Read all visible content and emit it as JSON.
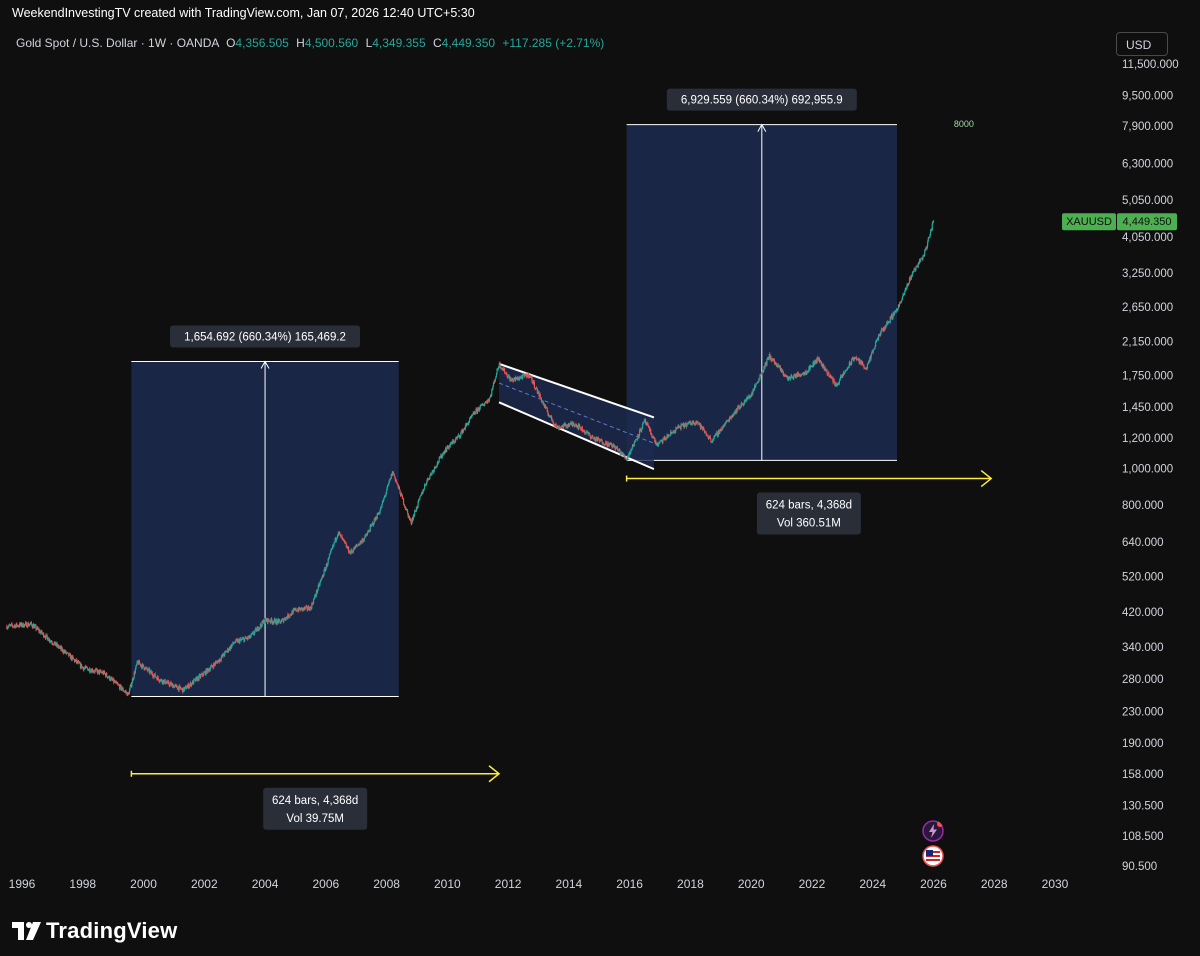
{
  "header": {
    "title": "WeekendInvestingTV created with TradingView.com, Jan 07, 2026 12:40 UTC+5:30"
  },
  "legend": {
    "symbol": "Gold Spot / U.S. Dollar · 1W · OANDA",
    "open_key": "O",
    "open": "4,356.505",
    "high_key": "H",
    "high": "4,500.560",
    "low_key": "L",
    "low": "4,349.355",
    "close_key": "C",
    "close": "4,449.350",
    "change": "+117.285 (+2.71%)"
  },
  "currency_button": "USD",
  "price_tag": {
    "symbol": "XAUUSD",
    "value": "4,449.350"
  },
  "footer": {
    "brand": "TradingView"
  },
  "icons": {
    "logo": "tradingview-logo-icon",
    "flash": "flash-icon",
    "flag": "us-flag-icon"
  },
  "colors": {
    "accent": "#26a69a",
    "bear": "#ef5350",
    "measure_box": "#1c2a4f",
    "arrow": "#ffeb3b",
    "price_tag": "#4caf50"
  },
  "chart_data": {
    "type": "candlestick",
    "symbol": "XAUUSD",
    "interval": "1W",
    "log_scale": true,
    "grid": false,
    "x_ticks": [
      "1996",
      "1998",
      "2000",
      "2002",
      "2004",
      "2006",
      "2008",
      "2010",
      "2012",
      "2014",
      "2016",
      "2018",
      "2020",
      "2022",
      "2024",
      "2026",
      "2028",
      "2030"
    ],
    "y_ticks": [
      "90.500",
      "108.500",
      "130.500",
      "158.000",
      "190.000",
      "230.000",
      "280.000",
      "340.000",
      "420.000",
      "520.000",
      "640.000",
      "800.000",
      "1,000.000",
      "1,200.000",
      "1,450.000",
      "1,750.000",
      "2,150.000",
      "2,650.000",
      "3,250.000",
      "4,050.000",
      "5,050.000",
      "6,300.000",
      "7,900.000",
      "9,500.000",
      "11,500.000"
    ],
    "price_path": [
      [
        1995.5,
        385
      ],
      [
        1996.3,
        390
      ],
      [
        1997.0,
        350
      ],
      [
        1997.5,
        325
      ],
      [
        1998.0,
        300
      ],
      [
        1998.7,
        290
      ],
      [
        1999.5,
        255
      ],
      [
        1999.8,
        310
      ],
      [
        2000.5,
        280
      ],
      [
        2001.3,
        262
      ],
      [
        2002.0,
        290
      ],
      [
        2002.5,
        315
      ],
      [
        2003.0,
        350
      ],
      [
        2003.5,
        360
      ],
      [
        2004.0,
        400
      ],
      [
        2004.5,
        395
      ],
      [
        2005.0,
        425
      ],
      [
        2005.5,
        430
      ],
      [
        2006.0,
        550
      ],
      [
        2006.4,
        680
      ],
      [
        2006.8,
        600
      ],
      [
        2007.3,
        660
      ],
      [
        2007.8,
        780
      ],
      [
        2008.2,
        980
      ],
      [
        2008.8,
        720
      ],
      [
        2009.3,
        920
      ],
      [
        2009.9,
        1110
      ],
      [
        2010.4,
        1220
      ],
      [
        2010.9,
        1400
      ],
      [
        2011.4,
        1530
      ],
      [
        2011.7,
        1880
      ],
      [
        2012.1,
        1700
      ],
      [
        2012.7,
        1760
      ],
      [
        2013.3,
        1400
      ],
      [
        2013.6,
        1280
      ],
      [
        2014.2,
        1310
      ],
      [
        2014.8,
        1200
      ],
      [
        2015.5,
        1140
      ],
      [
        2015.9,
        1060
      ],
      [
        2016.5,
        1330
      ],
      [
        2016.9,
        1150
      ],
      [
        2017.6,
        1280
      ],
      [
        2018.2,
        1330
      ],
      [
        2018.7,
        1180
      ],
      [
        2019.5,
        1420
      ],
      [
        2020.0,
        1560
      ],
      [
        2020.6,
        1970
      ],
      [
        2021.2,
        1720
      ],
      [
        2021.8,
        1790
      ],
      [
        2022.2,
        1940
      ],
      [
        2022.8,
        1650
      ],
      [
        2023.4,
        1960
      ],
      [
        2023.8,
        1830
      ],
      [
        2024.2,
        2230
      ],
      [
        2024.6,
        2480
      ],
      [
        2024.9,
        2700
      ],
      [
        2025.3,
        3250
      ],
      [
        2025.7,
        3650
      ],
      [
        2026.0,
        4449.35
      ]
    ],
    "measurements": [
      {
        "label": "1,654.692 (660.34%) 165,469.2",
        "x_start": 1999.6,
        "x_end": 2008.4,
        "y_low": 252,
        "y_high": 1906
      },
      {
        "label": "6,929.559 (660.34%) 692,955.9",
        "x_start": 2015.9,
        "x_end": 2024.8,
        "y_low": 1049,
        "y_high": 7975
      }
    ],
    "ranges": [
      {
        "x_start": 1999.6,
        "x_end": 2011.7,
        "y": 158,
        "label_line1": "624 bars, 4,368d",
        "label_line2": "Vol 39.75M"
      },
      {
        "x_start": 2015.9,
        "x_end": 2027.9,
        "y": 940,
        "label_line1": "624 bars, 4,368d",
        "label_line2": "Vol 360.51M"
      }
    ],
    "channel": {
      "upper": [
        [
          2011.7,
          1880
        ],
        [
          2016.8,
          1360
        ]
      ],
      "lower": [
        [
          2011.7,
          1490
        ],
        [
          2016.8,
          995
        ]
      ]
    },
    "annotation": {
      "text": "8000",
      "x": 2027.0,
      "y": 8000
    }
  }
}
